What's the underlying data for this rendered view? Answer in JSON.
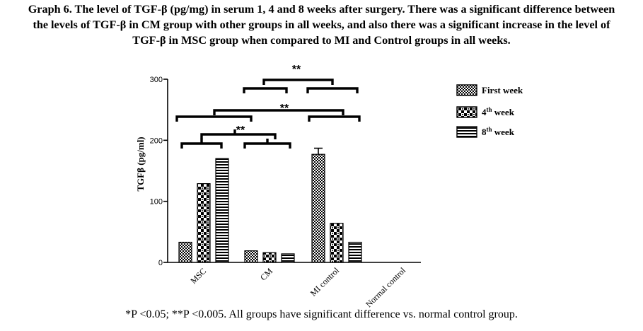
{
  "caption": {
    "line1": "Graph 6. The level of TGF-β (pg/mg) in serum 1, 4 and 8 weeks after surgery. There was a significant difference between",
    "line2": "the levels of TGF-β in CM group with other groups in all weeks, and also there was a significant increase in the level of",
    "line3": "TGF-β in MSC group when compared to MI and Control groups in all weeks."
  },
  "footnote": "*P <0.05; **P <0.005. All groups have significant difference vs. normal control group.",
  "chart_data": {
    "type": "bar",
    "ylabel": "TGFβ (pg/ml)",
    "ylim": [
      0,
      300
    ],
    "yticks": [
      0,
      100,
      200,
      300
    ],
    "grid": false,
    "legend_position": "right",
    "categories": [
      "MSC",
      "CM",
      "MI control",
      "Normal control"
    ],
    "series": [
      {
        "name": "First week",
        "superscript": "",
        "pattern": "checker-fine",
        "values": [
          33,
          19,
          177,
          null
        ],
        "errors": [
          0,
          0,
          10,
          null
        ]
      },
      {
        "name": "4",
        "superscript": "th",
        "suffix": " week",
        "pattern": "checker-coarse",
        "values": [
          129,
          16,
          64,
          null
        ],
        "errors": [
          0,
          0,
          0,
          null
        ]
      },
      {
        "name": "8",
        "superscript": "th",
        "suffix": " week",
        "pattern": "horizontal-lines",
        "values": [
          170,
          14,
          33,
          null
        ],
        "errors": [
          0,
          0,
          0,
          null
        ]
      }
    ],
    "significance_label": "**"
  }
}
